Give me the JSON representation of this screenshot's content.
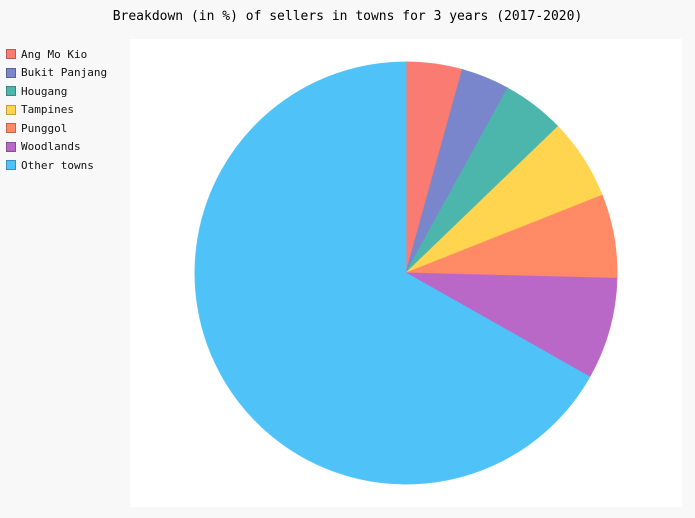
{
  "chart_data": {
    "type": "pie",
    "title": "Breakdown (in %) of sellers in towns for 3 years (2017-2020)",
    "legend_position": "top-left",
    "slices": [
      {
        "label": "Ang Mo Kio",
        "value": 4.3,
        "color": "#f97b72"
      },
      {
        "label": "Bukit Panjang",
        "value": 3.7,
        "color": "#7986cb"
      },
      {
        "label": "Hougang",
        "value": 4.8,
        "color": "#4db6ac"
      },
      {
        "label": "Tampines",
        "value": 6.2,
        "color": "#ffd54f"
      },
      {
        "label": "Punggol",
        "value": 6.4,
        "color": "#ff8a65"
      },
      {
        "label": "Woodlands",
        "value": 7.8,
        "color": "#ba68c8"
      },
      {
        "label": "Other towns",
        "value": 66.8,
        "color": "#4fc3f7"
      }
    ]
  }
}
